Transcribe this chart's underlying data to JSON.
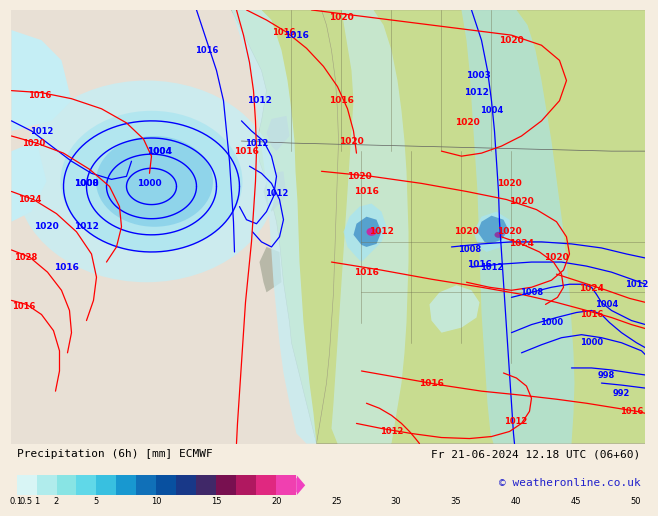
{
  "label_left": "Precipitation (6h) [mm] ECMWF",
  "label_right": "Fr 21-06-2024 12.18 UTC (06+60)",
  "copyright": "© weatheronline.co.uk",
  "bg_color": "#f5ede0",
  "ocean_color": "#e8e0d5",
  "land_color": "#c8dc90",
  "colorbar_colors": [
    "#d8f5f5",
    "#b0ecec",
    "#88e4e4",
    "#60d8e8",
    "#38c0e0",
    "#1898d0",
    "#1070b8",
    "#0850a0",
    "#183888",
    "#402868",
    "#781050",
    "#b01860",
    "#e02880",
    "#f040b0"
  ],
  "colorbar_labels": [
    "0.1",
    "0.5",
    "1",
    "2",
    "5",
    "10",
    "15",
    "20",
    "25",
    "30",
    "35",
    "40",
    "45",
    "50"
  ],
  "prec_light1": "#c5eef5",
  "prec_light2": "#a8e4f0",
  "prec_med": "#78c8e8",
  "prec_dark": "#4090c8",
  "prec_darkest": "#1850a0",
  "prec_purple": "#9030a0",
  "prec_magenta": "#d020a0"
}
